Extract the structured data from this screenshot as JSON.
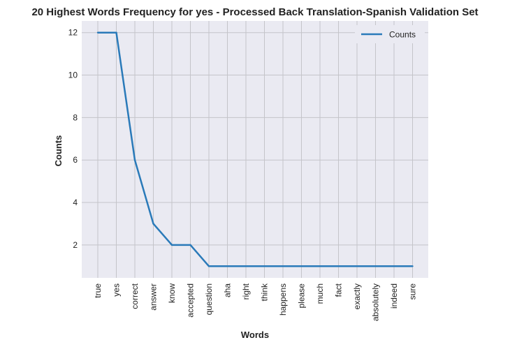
{
  "chart_data": {
    "type": "line",
    "title": "20 Highest Words Frequency for yes - Processed Back Translation-Spanish Validation Set",
    "xlabel": "Words",
    "ylabel": "Counts",
    "categories": [
      "true",
      "yes",
      "correct",
      "answer",
      "know",
      "accepted",
      "question",
      "aha",
      "right",
      "think",
      "happens",
      "please",
      "much",
      "fact",
      "exactly",
      "absolutely",
      "indeed",
      "sure"
    ],
    "series": [
      {
        "name": "Counts",
        "values": [
          12,
          12,
          6,
          3,
          2,
          2,
          1,
          1,
          1,
          1,
          1,
          1,
          1,
          1,
          1,
          1,
          1,
          1
        ],
        "color": "#2a7ab9"
      }
    ],
    "yticks": [
      2,
      4,
      6,
      8,
      10,
      12
    ],
    "ylim": [
      0.45,
      12.55
    ],
    "grid": true,
    "legend_position": "top-right",
    "colors": {
      "plot_background": "#eaeaf2",
      "grid": "#c4c4c9"
    }
  }
}
